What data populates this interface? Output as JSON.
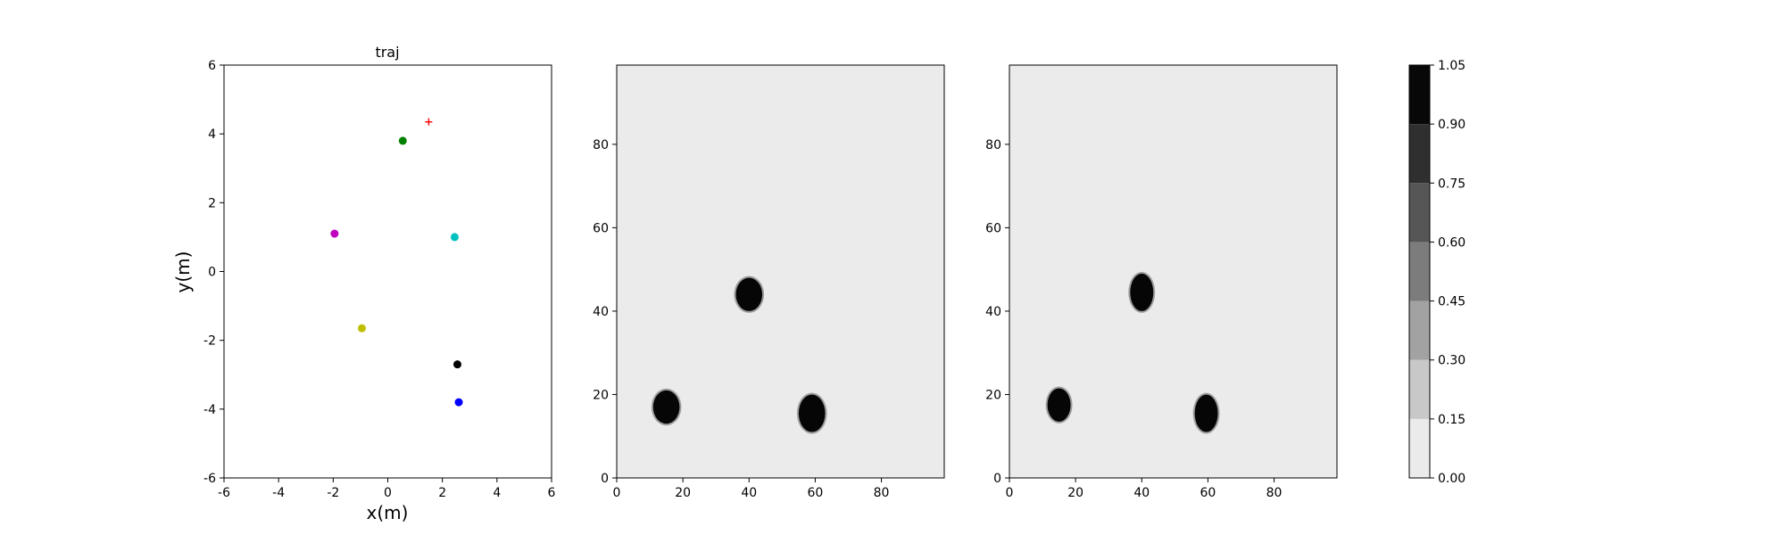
{
  "chart_data": [
    {
      "type": "scatter",
      "title": "traj",
      "xlabel": "x(m)",
      "ylabel": "y(m)",
      "xlim": [
        -6,
        6
      ],
      "ylim": [
        -6,
        6
      ],
      "xticks": [
        -6,
        -4,
        -2,
        0,
        2,
        4,
        6
      ],
      "yticks": [
        -6,
        -4,
        -2,
        0,
        2,
        4,
        6
      ],
      "points": [
        {
          "x": 0.55,
          "y": 3.8,
          "color": "#008000"
        },
        {
          "x": -1.95,
          "y": 1.1,
          "color": "#bf00bf"
        },
        {
          "x": 2.45,
          "y": 1.0,
          "color": "#00bfbf"
        },
        {
          "x": -0.95,
          "y": -1.65,
          "color": "#bfbf00"
        },
        {
          "x": 2.55,
          "y": -2.7,
          "color": "#000000"
        },
        {
          "x": 2.6,
          "y": -3.8,
          "color": "#0000ff"
        }
      ],
      "markers": [
        {
          "x": 1.5,
          "y": 4.35,
          "symbol": "+",
          "color": "#ff0000"
        }
      ],
      "grid": false
    },
    {
      "type": "heatmap",
      "xlim": [
        0,
        99
      ],
      "ylim": [
        0,
        99
      ],
      "xticks": [
        0,
        20,
        40,
        60,
        80
      ],
      "yticks": [
        0,
        20,
        40,
        60,
        80
      ],
      "background_value": 0.05,
      "blobs": [
        {
          "x": 15,
          "y": 17,
          "rx": 4,
          "ry": 4,
          "value": 1.0
        },
        {
          "x": 40,
          "y": 44,
          "rx": 4,
          "ry": 4,
          "value": 1.0
        },
        {
          "x": 59,
          "y": 15.5,
          "rx": 4,
          "ry": 4.5,
          "value": 1.0
        }
      ]
    },
    {
      "type": "heatmap",
      "xlim": [
        0,
        99
      ],
      "ylim": [
        0,
        99
      ],
      "xticks": [
        0,
        20,
        40,
        60,
        80
      ],
      "yticks": [
        0,
        20,
        40,
        60,
        80
      ],
      "background_value": 0.05,
      "blobs": [
        {
          "x": 15,
          "y": 17.5,
          "rx": 3.5,
          "ry": 4,
          "value": 1.0
        },
        {
          "x": 40,
          "y": 44.5,
          "rx": 3.5,
          "ry": 4.5,
          "value": 1.0
        },
        {
          "x": 59.5,
          "y": 15.5,
          "rx": 3.5,
          "ry": 4.5,
          "value": 1.0
        }
      ]
    }
  ],
  "colorbar": {
    "levels": [
      0.0,
      0.15,
      0.3,
      0.45,
      0.6,
      0.75,
      0.9,
      1.05
    ],
    "tick_labels": [
      "0.00",
      "0.15",
      "0.30",
      "0.45",
      "0.60",
      "0.75",
      "0.90",
      "1.05"
    ],
    "colors": [
      "#ebebeb",
      "#c8c8c8",
      "#a2a2a2",
      "#7c7c7c",
      "#565656",
      "#2f2f2f",
      "#080808"
    ]
  }
}
